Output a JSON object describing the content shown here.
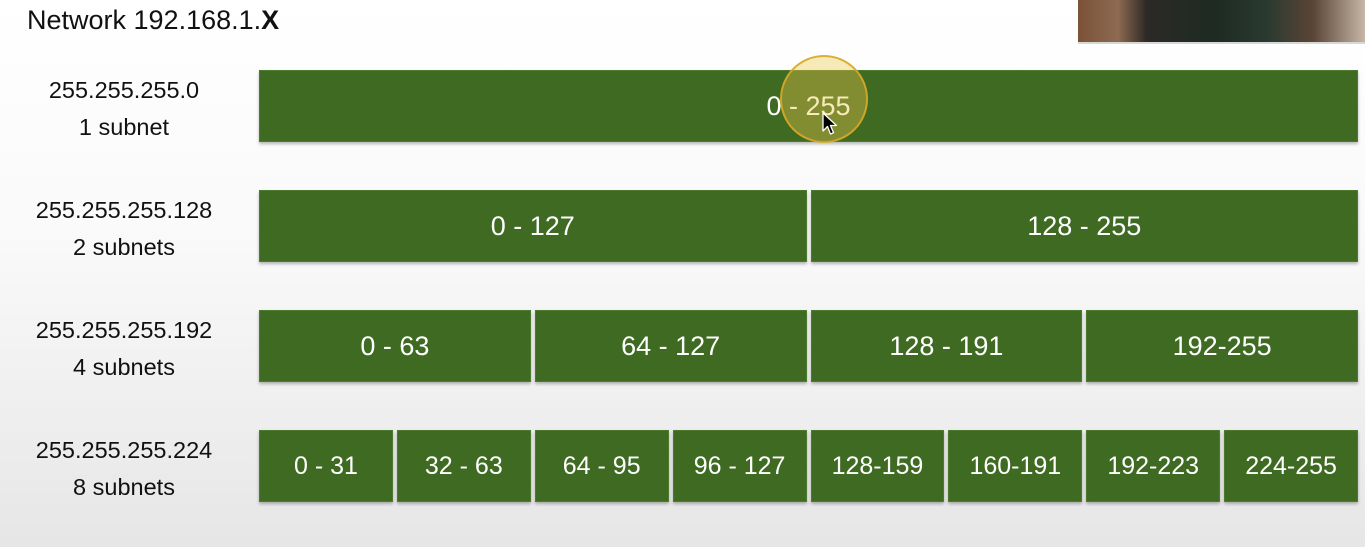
{
  "title": {
    "prefix": "Network 192.168.1.",
    "octet": "X"
  },
  "rows": [
    {
      "mask": "255.255.255.0",
      "count": "1 subnet",
      "ranges": [
        "0 - 255"
      ]
    },
    {
      "mask": "255.255.255.128",
      "count": "2 subnets",
      "ranges": [
        "0 - 127",
        "128 - 255"
      ]
    },
    {
      "mask": "255.255.255.192",
      "count": "4 subnets",
      "ranges": [
        "0 - 63",
        "64 - 127",
        "128 - 191",
        "192-255"
      ]
    },
    {
      "mask": "255.255.255.224",
      "count": "8 subnets",
      "ranges": [
        "0 - 31",
        "32 - 63",
        "64 - 95",
        "96 - 127",
        "128-159",
        "160-191",
        "192-223",
        "224-255"
      ]
    }
  ],
  "colors": {
    "cell": "#3e6a22",
    "cell_text": "#ffffff",
    "highlight": "#e8c445"
  },
  "overlays": {
    "webcam": "presenter-webcam",
    "pointer": "cursor-highlight",
    "cursor": "mouse-cursor-icon"
  }
}
